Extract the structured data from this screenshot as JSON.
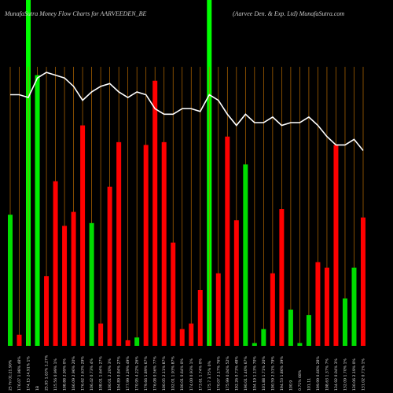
{
  "chart_data": {
    "type": "bar",
    "title": "MunafaSutra  Money Flow  Charts for AARVEEDEN_BE",
    "subtitle": "(Aarvee  Den. & Exp. Ltd) MunafaSutra.com",
    "categories": [
      "25 Fri 01:21.90%",
      "176.07 1.98% 48%",
      "174.15 24.91% 1%",
      "1B",
      "25.95 1.63% 1.27%",
      "115.56 0.99% 1%",
      "108.88 2.99% 0%",
      "166.09 2.96% 20%",
      "176.62 3.63% 29%",
      "106.42 0.73% 4%",
      "108.01 1.64% 27%",
      "100.01 2.20% 3%",
      "194.89 0.84% 27%",
      "177.99 3.29% 49%",
      "170.95 4.22% 26%",
      "179.66 1.89% 67%",
      "176.08 0.56% 77%",
      "100.05 2.11% 87%",
      "102.01 1.93% 87%",
      "100.01 0.64% 0%",
      "174.00 0.93% 1%",
      "173.61 1.74% 0%",
      "175.7 3.75% 0%",
      "170.07 2.17% 76%",
      "175.99 0.04% 52%",
      "192.26 0.73% 48%",
      "190.01 1.40% 67%",
      "104.19 1.13% 70%",
      "101.88 1.71% 20%",
      "190.59 2.51% 79%",
      "194.53 1.86% 39%",
      "100.9",
      "0.71% 68%",
      "101.11",
      "199.99 0.60% 28%",
      "198.63 1.37% 7%",
      "134.92 0.04% 3%",
      "132.09 1.70% 1%",
      "130.06 2.19% 0%",
      "131.02 0.71% 1%"
    ],
    "values": [
      47,
      4,
      null,
      97,
      25,
      59,
      43,
      48,
      79,
      44,
      8,
      57,
      73,
      2,
      3,
      72,
      95,
      73,
      37,
      6,
      8,
      20,
      null,
      26,
      75,
      45,
      65,
      1,
      6,
      26,
      49,
      13,
      1,
      11,
      30,
      28,
      72,
      17,
      28,
      46
    ],
    "bar_colors": [
      "#00dd00",
      "#ff0000",
      "#00ff00",
      "#00ee00",
      "#ff0000",
      "#ff0000",
      "#ff0000",
      "#ff0000",
      "#ff0000",
      "#00dd00",
      "#ff0000",
      "#ff0000",
      "#ff0000",
      "#ff0000",
      "#00dd00",
      "#ff0000",
      "#ff0000",
      "#ff0000",
      "#ff0000",
      "#ff0000",
      "#ff0000",
      "#ff0000",
      "#00ff00",
      "#ff0000",
      "#ff0000",
      "#ff0000",
      "#00dd00",
      "#00dd00",
      "#00dd00",
      "#ff0000",
      "#ff0000",
      "#00dd00",
      "#00dd00",
      "#00dd00",
      "#ff0000",
      "#ff0000",
      "#ff0000",
      "#00dd00",
      "#00dd00",
      "#ff0000"
    ],
    "highlight_indices": [
      2,
      22
    ],
    "highlight_color": "#00ff00",
    "line_values": [
      90,
      90,
      89,
      96,
      98,
      97,
      96,
      93,
      88,
      91,
      93,
      94,
      91,
      89,
      91,
      90,
      85,
      83,
      83,
      85,
      85,
      84,
      90,
      88,
      83,
      79,
      83,
      80,
      80,
      82,
      79,
      80,
      80,
      82,
      79,
      75,
      72,
      72,
      74,
      70
    ],
    "line_color": "#ffffff",
    "grid_color": "#b86a00",
    "ylim": [
      0,
      100
    ]
  }
}
